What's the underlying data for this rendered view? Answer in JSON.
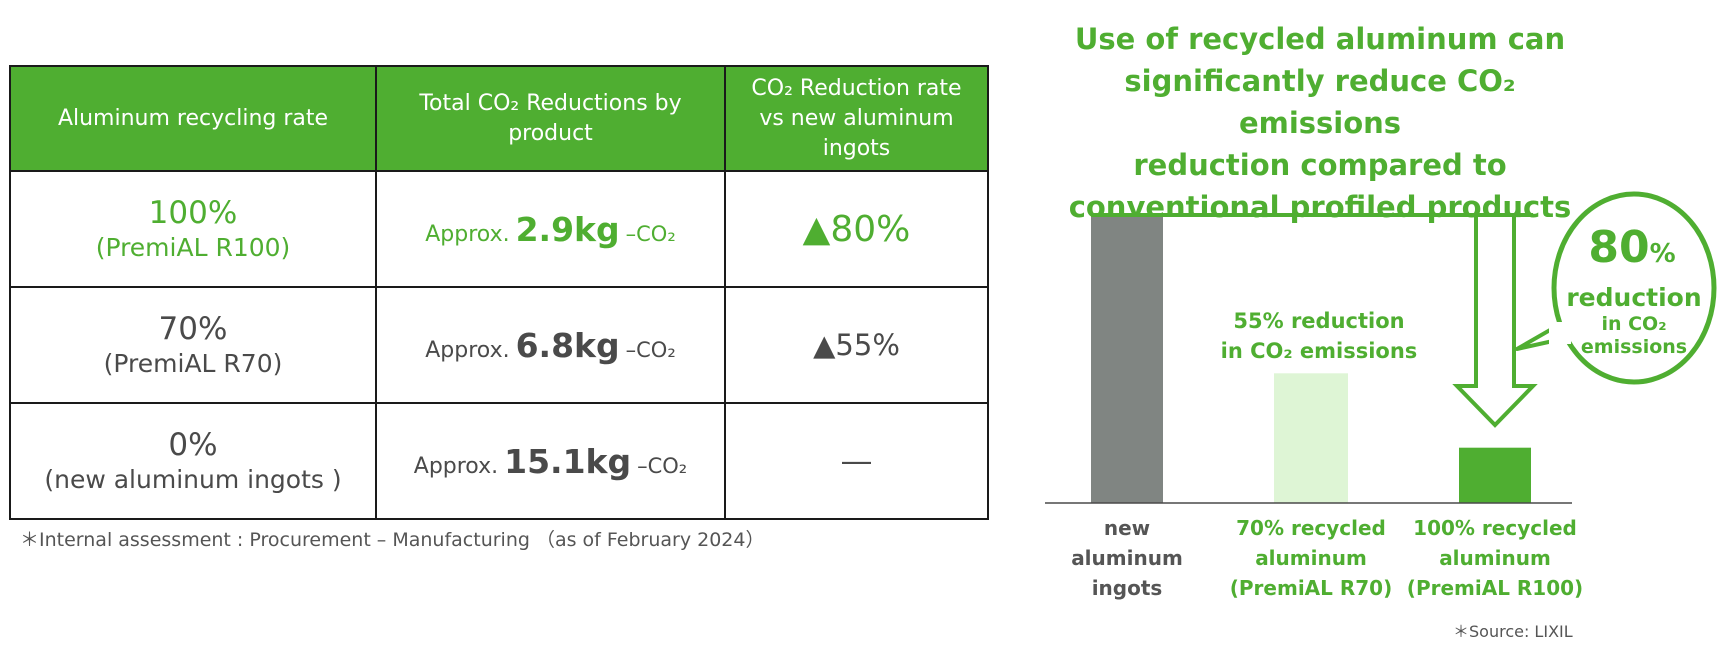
{
  "table": {
    "headers": [
      "Aluminum recycling rate",
      "Total CO₂ Reductions by product",
      "CO₂ Reduction rate vs new aluminum ingots"
    ],
    "rows": [
      {
        "rate": "100%",
        "product": "(PremiAL R100)",
        "approx": "Approx.",
        "amount": "2.9kg",
        "unit": "–CO₂",
        "reduction": "▲80%"
      },
      {
        "rate": "70%",
        "product": "(PremiAL R70)",
        "approx": "Approx.",
        "amount": "6.8kg",
        "unit": "–CO₂",
        "reduction": "▲55%"
      },
      {
        "rate": "0%",
        "product": "(new aluminum ingots )",
        "approx": "Approx.",
        "amount": "15.1kg",
        "unit": "–CO₂",
        "reduction": "―"
      }
    ],
    "note": "＊Internal assessment : Procurement – Manufacturing （as of February 2024）"
  },
  "headline": [
    "Use of recycled aluminum can",
    "significantly reduce CO₂ emissions",
    "reduction compared to",
    "conventional profiled products"
  ],
  "source": "＊Source: LIXIL",
  "colors": {
    "accent": "#4fae31",
    "gray_bar": "#808582",
    "light_bar": "#def5d5",
    "label_gray": "#555555"
  },
  "chart_data": {
    "type": "bar",
    "categories": [
      "new aluminum ingots",
      "70% recycled aluminum (PremiAL R70)",
      "100% recycled aluminum (PremiAL R100)"
    ],
    "category_lines": [
      [
        "new",
        "aluminum",
        "ingots"
      ],
      [
        "70% recycled",
        "aluminum",
        "(PremiAL R70)"
      ],
      [
        "100% recycled",
        "aluminum",
        "(PremiAL R100)"
      ]
    ],
    "values": [
      15.1,
      6.8,
      2.9
    ],
    "unit": "kg-CO₂",
    "ylim": [
      0,
      15.1
    ],
    "annotations": {
      "mid_label": [
        "55% reduction",
        "in CO₂ emissions"
      ],
      "bubble_big": "80",
      "bubble_pct": "%",
      "bubble_lines": [
        "reduction",
        "in CO₂",
        "emissions"
      ]
    },
    "grid": false,
    "legend": "none"
  }
}
